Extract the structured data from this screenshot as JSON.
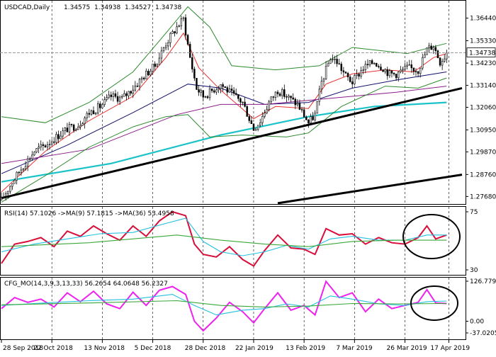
{
  "header": {
    "symbol": "USDCAD,Daily",
    "open": "1.34575",
    "high": "1.34938",
    "low": "1.34527",
    "close": "1.34738"
  },
  "rsi_header": "RSI(14) 57.1026 ->MA(9) 57.1815 ->MA(36) 53.4958",
  "cfg_header": "CFG_MO(14,3,9,3,13,33) 56.2654 64.0648 56.2327",
  "current_price_label": "1.34738",
  "colors": {
    "candle": "#000000",
    "ma_red": "#e8312f",
    "ma_navy": "#10106e",
    "ma_purple": "#8b1f8b",
    "ma_cyan": "#19c3c8",
    "bollinger": "#2e8b2e",
    "trendline": "#000000",
    "rsi_line": "#d80f3a",
    "rsi_ma_fast": "#22c0e0",
    "rsi_ma_slow": "#3aa83a",
    "cfg_line": "#ee22ee",
    "cfg_signal_1": "#22c0e0",
    "cfg_signal_2": "#3aa83a"
  },
  "chart_data": [
    {
      "type": "candlestick",
      "title": "USDCAD,Daily",
      "ylim": [
        1.2731,
        1.3726
      ],
      "yticks": [
        "1.36440",
        "1.35330",
        "1.34230",
        "1.33140",
        "1.32060",
        "1.30950",
        "1.29870",
        "1.28760",
        "1.27680"
      ],
      "xticks": [
        "28 Sep 2018",
        "22 Oct 2018",
        "13 Nov 2018",
        "5 Dec 2018",
        "28 Dec 2018",
        "22 Jan 2019",
        "13 Feb 2019",
        "7 Mar 2019",
        "26 Mar 2019",
        "17 Apr 2019"
      ],
      "last_close": 1.34738,
      "close_path": [
        [
          0,
          1.275
        ],
        [
          5,
          1.284
        ],
        [
          10,
          1.292
        ],
        [
          15,
          1.299
        ],
        [
          20,
          1.302
        ],
        [
          25,
          1.306
        ],
        [
          30,
          1.31
        ],
        [
          35,
          1.312
        ],
        [
          40,
          1.318
        ],
        [
          45,
          1.321
        ],
        [
          50,
          1.326
        ],
        [
          55,
          1.325
        ],
        [
          60,
          1.33
        ],
        [
          65,
          1.336
        ],
        [
          70,
          1.341
        ],
        [
          75,
          1.352
        ],
        [
          80,
          1.36
        ],
        [
          83,
          1.364
        ],
        [
          86,
          1.345
        ],
        [
          89,
          1.33
        ],
        [
          92,
          1.326
        ],
        [
          95,
          1.328
        ],
        [
          100,
          1.332
        ],
        [
          105,
          1.327
        ],
        [
          110,
          1.323
        ],
        [
          115,
          1.31
        ],
        [
          118,
          1.314
        ],
        [
          122,
          1.323
        ],
        [
          126,
          1.329
        ],
        [
          130,
          1.326
        ],
        [
          135,
          1.322
        ],
        [
          140,
          1.313
        ],
        [
          143,
          1.317
        ],
        [
          146,
          1.333
        ],
        [
          150,
          1.345
        ],
        [
          153,
          1.343
        ],
        [
          157,
          1.336
        ],
        [
          160,
          1.333
        ],
        [
          165,
          1.34
        ],
        [
          170,
          1.343
        ],
        [
          174,
          1.34
        ],
        [
          177,
          1.337
        ],
        [
          180,
          1.337
        ],
        [
          185,
          1.34
        ],
        [
          190,
          1.339
        ],
        [
          194,
          1.349
        ],
        [
          197,
          1.351
        ],
        [
          200,
          1.343
        ],
        [
          203,
          1.347
        ]
      ],
      "series": [
        {
          "name": "",
          "color": "#e8312f",
          "values": [
            [
              0,
              1.279
            ],
            [
              20,
              1.299
            ],
            [
              40,
              1.314
            ],
            [
              60,
              1.326
            ],
            [
              75,
              1.345
            ],
            [
              83,
              1.357
            ],
            [
              90,
              1.34
            ],
            [
              100,
              1.329
            ],
            [
              115,
              1.315
            ],
            [
              125,
              1.321
            ],
            [
              140,
              1.32
            ],
            [
              148,
              1.332
            ],
            [
              160,
              1.337
            ],
            [
              175,
              1.339
            ],
            [
              188,
              1.338
            ],
            [
              197,
              1.345
            ],
            [
              203,
              1.347
            ]
          ]
        },
        {
          "name": "",
          "color": "#10106e",
          "values": [
            [
              0,
              1.288
            ],
            [
              30,
              1.302
            ],
            [
              60,
              1.318
            ],
            [
              85,
              1.332
            ],
            [
              100,
              1.33
            ],
            [
              120,
              1.322
            ],
            [
              140,
              1.323
            ],
            [
              160,
              1.33
            ],
            [
              180,
              1.334
            ],
            [
              203,
              1.338
            ]
          ]
        },
        {
          "name": "",
          "color": "#8b1f8b",
          "values": [
            [
              0,
              1.293
            ],
            [
              40,
              1.3
            ],
            [
              80,
              1.317
            ],
            [
              100,
              1.322
            ],
            [
              120,
              1.322
            ],
            [
              150,
              1.325
            ],
            [
              180,
              1.328
            ],
            [
              203,
              1.331
            ]
          ]
        },
        {
          "name": "",
          "color": "#19c3c8",
          "values": [
            [
              0,
              1.284
            ],
            [
              50,
              1.293
            ],
            [
              100,
              1.307
            ],
            [
              140,
              1.316
            ],
            [
              170,
              1.321
            ],
            [
              203,
              1.323
            ]
          ]
        },
        {
          "name": "",
          "color": "#2e8b2e",
          "values": [
            [
              0,
              1.316
            ],
            [
              20,
              1.313
            ],
            [
              40,
              1.323
            ],
            [
              60,
              1.338
            ],
            [
              75,
              1.357
            ],
            [
              85,
              1.37
            ],
            [
              95,
              1.36
            ],
            [
              105,
              1.341
            ],
            [
              125,
              1.339
            ],
            [
              145,
              1.341
            ],
            [
              160,
              1.35
            ],
            [
              185,
              1.347
            ],
            [
              203,
              1.352
            ]
          ]
        },
        {
          "name": "",
          "color": "#2e8b2e",
          "values": [
            [
              0,
              1.274
            ],
            [
              20,
              1.287
            ],
            [
              40,
              1.301
            ],
            [
              60,
              1.311
            ],
            [
              75,
              1.316
            ],
            [
              85,
              1.317
            ],
            [
              95,
              1.306
            ],
            [
              110,
              1.307
            ],
            [
              130,
              1.306
            ],
            [
              140,
              1.308
            ],
            [
              155,
              1.321
            ],
            [
              175,
              1.331
            ],
            [
              190,
              1.33
            ],
            [
              203,
              1.335
            ]
          ]
        }
      ],
      "trendlines": [
        {
          "from": [
            0,
            1.276
          ],
          "to": [
            210,
            1.33
          ]
        },
        {
          "from": [
            126,
            1.2735
          ],
          "to": [
            210,
            1.2875
          ]
        }
      ]
    },
    {
      "type": "line",
      "title": "RSI(14) 57.1026 ->MA(9) 57.1815 ->MA(36) 53.4958",
      "ylim": [
        30,
        75
      ],
      "yticks": [
        "75",
        "30"
      ],
      "series": [
        {
          "name": "RSI(14)",
          "color": "#d80f3a",
          "values": [
            [
              0,
              35
            ],
            [
              6,
              50
            ],
            [
              12,
              52
            ],
            [
              18,
              55
            ],
            [
              24,
              48
            ],
            [
              30,
              60
            ],
            [
              36,
              56
            ],
            [
              42,
              64
            ],
            [
              48,
              58
            ],
            [
              54,
              53
            ],
            [
              60,
              64
            ],
            [
              66,
              56
            ],
            [
              72,
              68
            ],
            [
              78,
              75
            ],
            [
              84,
              72
            ],
            [
              88,
              50
            ],
            [
              92,
              42
            ],
            [
              98,
              40
            ],
            [
              104,
              48
            ],
            [
              110,
              38
            ],
            [
              115,
              33
            ],
            [
              120,
              45
            ],
            [
              126,
              57
            ],
            [
              132,
              47
            ],
            [
              138,
              46
            ],
            [
              143,
              42
            ],
            [
              148,
              62
            ],
            [
              154,
              57
            ],
            [
              160,
              58
            ],
            [
              166,
              50
            ],
            [
              172,
              55
            ],
            [
              178,
              51
            ],
            [
              184,
              50
            ],
            [
              190,
              55
            ],
            [
              194,
              64
            ],
            [
              198,
              54
            ],
            [
              203,
              57
            ]
          ]
        },
        {
          "name": "MA(9)",
          "color": "#22c0e0",
          "values": [
            [
              0,
              44
            ],
            [
              15,
              50
            ],
            [
              30,
              54
            ],
            [
              45,
              58
            ],
            [
              60,
              59
            ],
            [
              75,
              66
            ],
            [
              84,
              70
            ],
            [
              92,
              52
            ],
            [
              100,
              44
            ],
            [
              110,
              41
            ],
            [
              120,
              44
            ],
            [
              130,
              49
            ],
            [
              140,
              46
            ],
            [
              150,
              54
            ],
            [
              160,
              56
            ],
            [
              172,
              53
            ],
            [
              184,
              53
            ],
            [
              194,
              57
            ],
            [
              203,
              57
            ]
          ]
        },
        {
          "name": "MA(36)",
          "color": "#3aa83a",
          "values": [
            [
              0,
              48
            ],
            [
              40,
              51
            ],
            [
              80,
              57
            ],
            [
              100,
              53
            ],
            [
              120,
              50
            ],
            [
              140,
              48
            ],
            [
              160,
              52
            ],
            [
              180,
              53
            ],
            [
              203,
              53
            ]
          ]
        }
      ]
    },
    {
      "type": "line",
      "title": "CFG_MO(14,3,9,3,13,33) 56.2654 64.0648 56.2327",
      "ylim": [
        -37.0205,
        126.7797
      ],
      "yticks": [
        "126.7797",
        "0.00",
        "-37.0205"
      ],
      "series": [
        {
          "name": "",
          "color": "#ee22ee",
          "values": [
            [
              0,
              40
            ],
            [
              6,
              75
            ],
            [
              12,
              60
            ],
            [
              18,
              70
            ],
            [
              24,
              45
            ],
            [
              30,
              90
            ],
            [
              36,
              62
            ],
            [
              42,
              95
            ],
            [
              48,
              55
            ],
            [
              54,
              40
            ],
            [
              60,
              92
            ],
            [
              66,
              50
            ],
            [
              72,
              98
            ],
            [
              78,
              110
            ],
            [
              84,
              85
            ],
            [
              88,
              0
            ],
            [
              92,
              -30
            ],
            [
              98,
              10
            ],
            [
              104,
              60
            ],
            [
              110,
              30
            ],
            [
              115,
              -5
            ],
            [
              120,
              40
            ],
            [
              126,
              90
            ],
            [
              132,
              35
            ],
            [
              138,
              50
            ],
            [
              143,
              20
            ],
            [
              148,
              126
            ],
            [
              154,
              75
            ],
            [
              160,
              90
            ],
            [
              166,
              30
            ],
            [
              172,
              70
            ],
            [
              178,
              40
            ],
            [
              184,
              50
            ],
            [
              190,
              60
            ],
            [
              194,
              100
            ],
            [
              198,
              58
            ],
            [
              203,
              56
            ]
          ]
        },
        {
          "name": "",
          "color": "#22c0e0",
          "values": [
            [
              0,
              50
            ],
            [
              20,
              58
            ],
            [
              40,
              65
            ],
            [
              60,
              70
            ],
            [
              78,
              85
            ],
            [
              88,
              50
            ],
            [
              98,
              20
            ],
            [
              110,
              35
            ],
            [
              120,
              40
            ],
            [
              130,
              55
            ],
            [
              140,
              45
            ],
            [
              150,
              80
            ],
            [
              160,
              70
            ],
            [
              172,
              55
            ],
            [
              184,
              50
            ],
            [
              194,
              62
            ],
            [
              203,
              64
            ]
          ]
        },
        {
          "name": "",
          "color": "#3aa83a",
          "values": [
            [
              0,
              52
            ],
            [
              40,
              58
            ],
            [
              80,
              65
            ],
            [
              100,
              50
            ],
            [
              120,
              45
            ],
            [
              140,
              48
            ],
            [
              160,
              56
            ],
            [
              180,
              55
            ],
            [
              203,
              56
            ]
          ]
        }
      ]
    }
  ]
}
